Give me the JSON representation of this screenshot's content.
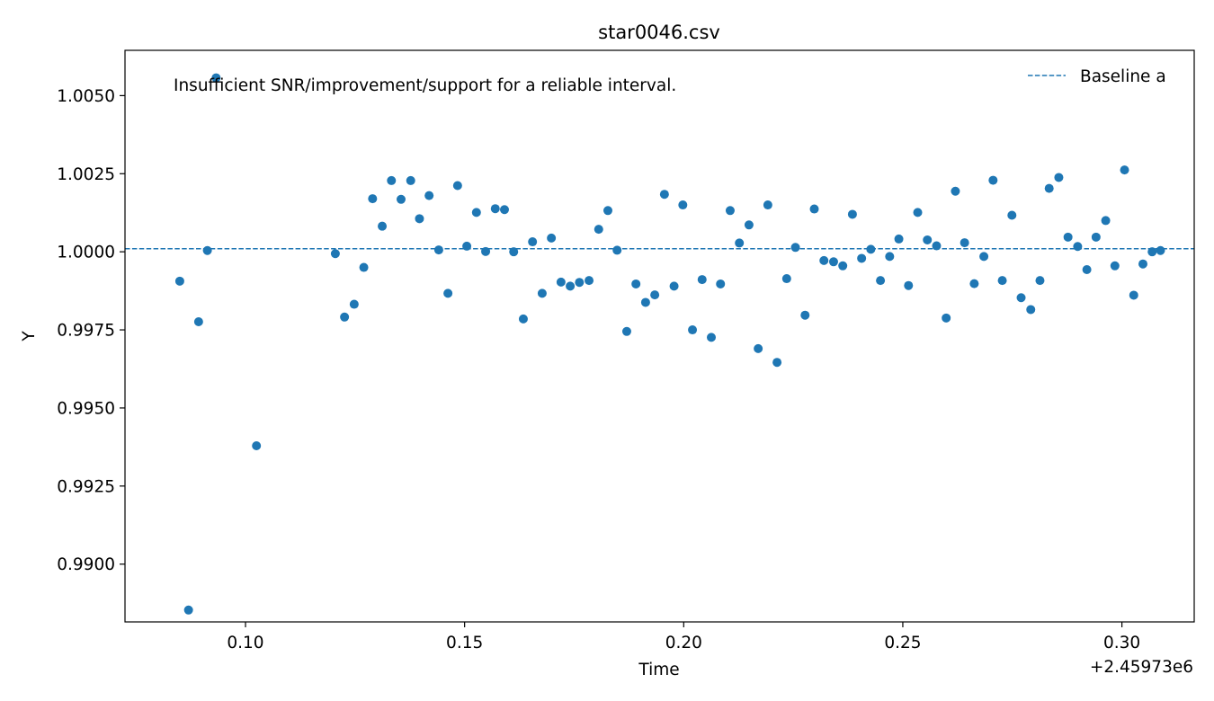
{
  "chart_data": {
    "type": "scatter",
    "title": "star0046.csv",
    "xlabel": "Time",
    "ylabel": "Y",
    "x_offset_label": "+2.45973e6",
    "annotation": "Insufficient SNR/improvement/support for a reliable interval.",
    "xlim": [
      0.0725,
      0.3165
    ],
    "ylim": [
      0.98815,
      1.00645
    ],
    "x_ticks": [
      0.1,
      0.15,
      0.2,
      0.25,
      0.3
    ],
    "x_tick_labels": [
      "0.10",
      "0.15",
      "0.20",
      "0.25",
      "0.30"
    ],
    "y_ticks": [
      0.99,
      0.9925,
      0.995,
      0.9975,
      1.0,
      1.0025,
      1.005
    ],
    "y_tick_labels": [
      "0.9900",
      "0.9925",
      "0.9950",
      "0.9975",
      "1.0000",
      "1.0025",
      "1.0050"
    ],
    "grid": false,
    "legend_position": "top-right",
    "legend": [
      {
        "label": "Baseline a",
        "style": "dashed",
        "color": "#1f77b4"
      }
    ],
    "baseline": {
      "name": "Baseline a",
      "y": 1.0001,
      "color": "#1f77b4"
    },
    "marker_color": "#1f77b4",
    "points": [
      [
        0.085,
        0.99906
      ],
      [
        0.087,
        0.98853
      ],
      [
        0.0893,
        0.99776
      ],
      [
        0.0913,
        1.00004
      ],
      [
        0.0933,
        1.00557
      ],
      [
        0.1025,
        0.99379
      ],
      [
        0.1205,
        0.99994
      ],
      [
        0.1226,
        0.99791
      ],
      [
        0.1248,
        0.99832
      ],
      [
        0.127,
        0.9995
      ],
      [
        0.129,
        1.0017
      ],
      [
        0.1312,
        1.00082
      ],
      [
        0.1333,
        1.00228
      ],
      [
        0.1355,
        1.00168
      ],
      [
        0.1377,
        1.00228
      ],
      [
        0.1397,
        1.00106
      ],
      [
        0.1419,
        1.0018
      ],
      [
        0.1441,
        1.00006
      ],
      [
        0.1462,
        0.99867
      ],
      [
        0.1484,
        1.00212
      ],
      [
        0.1505,
        1.00018
      ],
      [
        0.1527,
        1.00126
      ],
      [
        0.1548,
        1.00001
      ],
      [
        0.157,
        1.00138
      ],
      [
        0.1591,
        1.00135
      ],
      [
        0.1612,
        1.0
      ],
      [
        0.1634,
        0.99785
      ],
      [
        0.1655,
        1.00032
      ],
      [
        0.1677,
        0.99867
      ],
      [
        0.1698,
        1.00044
      ],
      [
        0.172,
        0.99903
      ],
      [
        0.1741,
        0.9989
      ],
      [
        0.1762,
        0.99902
      ],
      [
        0.1784,
        0.99908
      ],
      [
        0.1806,
        1.00072
      ],
      [
        0.1827,
        1.00132
      ],
      [
        0.1848,
        1.00005
      ],
      [
        0.187,
        0.99745
      ],
      [
        0.1891,
        0.99897
      ],
      [
        0.1913,
        0.99838
      ],
      [
        0.1934,
        0.99862
      ],
      [
        0.1956,
        1.00184
      ],
      [
        0.1978,
        0.9989
      ],
      [
        0.1998,
        1.0015
      ],
      [
        0.202,
        0.9975
      ],
      [
        0.2042,
        0.99911
      ],
      [
        0.2063,
        0.99726
      ],
      [
        0.2084,
        0.99897
      ],
      [
        0.2106,
        1.00132
      ],
      [
        0.2127,
        1.00028
      ],
      [
        0.2149,
        1.00086
      ],
      [
        0.217,
        0.9969
      ],
      [
        0.2192,
        1.0015
      ],
      [
        0.2213,
        0.99646
      ],
      [
        0.2235,
        0.99914
      ],
      [
        0.2255,
        1.00014
      ],
      [
        0.2277,
        0.99797
      ],
      [
        0.2298,
        1.00137
      ],
      [
        0.232,
        0.99972
      ],
      [
        0.2342,
        0.99968
      ],
      [
        0.2363,
        0.99955
      ],
      [
        0.2385,
        1.0012
      ],
      [
        0.2406,
        0.99979
      ],
      [
        0.2427,
        1.00008
      ],
      [
        0.2449,
        0.99908
      ],
      [
        0.247,
        0.99985
      ],
      [
        0.2491,
        1.00041
      ],
      [
        0.2513,
        0.99892
      ],
      [
        0.2534,
        1.00126
      ],
      [
        0.2556,
        1.00038
      ],
      [
        0.2577,
        1.00019
      ],
      [
        0.2599,
        0.99788
      ],
      [
        0.262,
        1.00194
      ],
      [
        0.2641,
        1.00029
      ],
      [
        0.2663,
        0.99898
      ],
      [
        0.2685,
        0.99985
      ],
      [
        0.2706,
        1.00229
      ],
      [
        0.2727,
        0.99908
      ],
      [
        0.2749,
        1.00117
      ],
      [
        0.277,
        0.99853
      ],
      [
        0.2792,
        0.99815
      ],
      [
        0.2813,
        0.99908
      ],
      [
        0.2834,
        1.00203
      ],
      [
        0.2856,
        1.00238
      ],
      [
        0.2877,
        1.00047
      ],
      [
        0.2899,
        1.00017
      ],
      [
        0.292,
        0.99943
      ],
      [
        0.2941,
        1.00047
      ],
      [
        0.2963,
        1.001
      ],
      [
        0.2984,
        0.99955
      ],
      [
        0.3006,
        1.00262
      ],
      [
        0.3027,
        0.99861
      ],
      [
        0.3048,
        0.99961
      ],
      [
        0.3069,
        1.0
      ],
      [
        0.3088,
        1.00004
      ]
    ]
  }
}
